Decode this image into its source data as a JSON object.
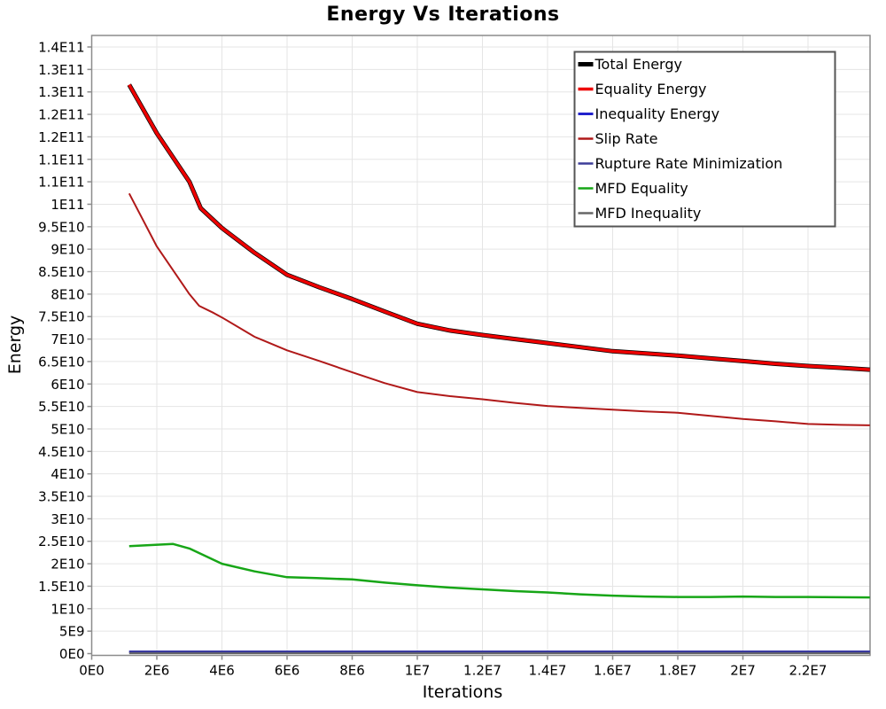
{
  "chart_data": {
    "type": "line",
    "title": "Energy Vs Iterations",
    "xlabel": "Iterations",
    "ylabel": "Energy",
    "units": {
      "x_points": "millions of iterations",
      "y_points": "billions (1e9) of energy"
    },
    "xlim_millions": [
      0,
      23.9
    ],
    "ylim_billions": [
      0,
      135
    ],
    "grid": true,
    "legend_position": "top-right",
    "x_tick_values_millions": [
      0,
      2,
      4,
      6,
      8,
      10,
      12,
      14,
      16,
      18,
      20,
      22
    ],
    "x_tick_labels": [
      "0E0",
      "2E6",
      "4E6",
      "6E6",
      "8E6",
      "1E7",
      "1.2E7",
      "1.4E7",
      "1.6E7",
      "1.8E7",
      "2E7",
      "2.2E7"
    ],
    "y_tick_values_billions": [
      0,
      5,
      10,
      15,
      20,
      25,
      30,
      35,
      40,
      45,
      50,
      55,
      60,
      65,
      70,
      75,
      80,
      85,
      90,
      95,
      100,
      105,
      110,
      115,
      120,
      125,
      130,
      135
    ],
    "y_tick_labels": [
      "0E0",
      "5E9",
      "1E10",
      "1.5E10",
      "2E10",
      "2.5E10",
      "3E10",
      "3.5E10",
      "4E10",
      "4.5E10",
      "5E10",
      "5.5E10",
      "6E10",
      "6.5E10",
      "7E10",
      "7.5E10",
      "8E10",
      "8.5E10",
      "9E10",
      "9.5E10",
      "1E11",
      "1.1E11",
      "1.1E11",
      "1.2E11",
      "1.2E11",
      "1.3E11",
      "1.3E11",
      "1.4E11"
    ],
    "series": [
      {
        "name": "Total Energy",
        "color": "#000000",
        "width": 5,
        "points": [
          [
            1.15,
            126.6
          ],
          [
            2,
            115.8
          ],
          [
            3,
            105.0
          ],
          [
            3.35,
            99.1
          ],
          [
            4,
            94.7
          ],
          [
            5,
            89.2
          ],
          [
            6,
            84.3
          ],
          [
            7,
            81.5
          ],
          [
            8,
            78.9
          ],
          [
            9,
            76.1
          ],
          [
            10,
            73.4
          ],
          [
            11,
            71.9
          ],
          [
            12,
            70.9
          ],
          [
            13,
            70.0
          ],
          [
            14,
            69.1
          ],
          [
            15,
            68.2
          ],
          [
            16,
            67.3
          ],
          [
            17,
            66.8
          ],
          [
            18,
            66.3
          ],
          [
            19,
            65.7
          ],
          [
            20,
            65.1
          ],
          [
            21,
            64.5
          ],
          [
            22,
            64.0
          ],
          [
            23,
            63.6
          ],
          [
            23.9,
            63.2
          ]
        ]
      },
      {
        "name": "Equality Energy",
        "color": "#ee0000",
        "width": 3.5,
        "points": [
          [
            1.15,
            126.6
          ],
          [
            2,
            115.8
          ],
          [
            3,
            105.0
          ],
          [
            3.35,
            99.1
          ],
          [
            4,
            94.7
          ],
          [
            5,
            89.2
          ],
          [
            6,
            84.3
          ],
          [
            7,
            81.5
          ],
          [
            8,
            78.9
          ],
          [
            9,
            76.1
          ],
          [
            10,
            73.4
          ],
          [
            11,
            71.9
          ],
          [
            12,
            70.9
          ],
          [
            13,
            70.0
          ],
          [
            14,
            69.1
          ],
          [
            15,
            68.2
          ],
          [
            16,
            67.3
          ],
          [
            17,
            66.8
          ],
          [
            18,
            66.3
          ],
          [
            19,
            65.7
          ],
          [
            20,
            65.1
          ],
          [
            21,
            64.5
          ],
          [
            22,
            64.0
          ],
          [
            23,
            63.6
          ],
          [
            23.9,
            63.2
          ]
        ]
      },
      {
        "name": "Inequality Energy",
        "color": "#2222cc",
        "width": 3,
        "points": [
          [
            1.15,
            0.4
          ],
          [
            5,
            0.4
          ],
          [
            10,
            0.4
          ],
          [
            15,
            0.4
          ],
          [
            20,
            0.4
          ],
          [
            23.9,
            0.4
          ]
        ]
      },
      {
        "name": "Slip Rate",
        "color": "#b01919",
        "width": 2,
        "points": [
          [
            1.15,
            102.4
          ],
          [
            2,
            90.6
          ],
          [
            3,
            80.0
          ],
          [
            3.3,
            77.4
          ],
          [
            3.75,
            75.8
          ],
          [
            4,
            74.8
          ],
          [
            5,
            70.5
          ],
          [
            6,
            67.5
          ],
          [
            7,
            65.1
          ],
          [
            8,
            62.6
          ],
          [
            9,
            60.2
          ],
          [
            10,
            58.2
          ],
          [
            11,
            57.3
          ],
          [
            12,
            56.6
          ],
          [
            13,
            55.8
          ],
          [
            14,
            55.1
          ],
          [
            15,
            54.7
          ],
          [
            16,
            54.3
          ],
          [
            17,
            53.9
          ],
          [
            18,
            53.6
          ],
          [
            19,
            52.9
          ],
          [
            20,
            52.2
          ],
          [
            21,
            51.7
          ],
          [
            22,
            51.1
          ],
          [
            23,
            50.9
          ],
          [
            23.9,
            50.8
          ]
        ]
      },
      {
        "name": "Rupture Rate Minimization",
        "color": "#3d3d99",
        "width": 2,
        "points": [
          [
            1.15,
            0.45
          ],
          [
            5,
            0.45
          ],
          [
            10,
            0.45
          ],
          [
            15,
            0.45
          ],
          [
            20,
            0.45
          ],
          [
            23.9,
            0.45
          ]
        ]
      },
      {
        "name": "MFD Equality",
        "color": "#17a617",
        "width": 2.5,
        "points": [
          [
            1.15,
            23.9
          ],
          [
            2.5,
            24.4
          ],
          [
            3,
            23.4
          ],
          [
            4,
            20.0
          ],
          [
            5,
            18.3
          ],
          [
            6,
            17.0
          ],
          [
            6.9,
            16.8
          ],
          [
            8,
            16.5
          ],
          [
            9,
            15.8
          ],
          [
            10,
            15.2
          ],
          [
            11,
            14.7
          ],
          [
            12,
            14.3
          ],
          [
            13,
            13.9
          ],
          [
            14,
            13.6
          ],
          [
            15,
            13.2
          ],
          [
            16,
            12.9
          ],
          [
            17,
            12.7
          ],
          [
            18,
            12.6
          ],
          [
            19,
            12.6
          ],
          [
            20,
            12.7
          ],
          [
            21,
            12.6
          ],
          [
            22,
            12.6
          ],
          [
            23.9,
            12.5
          ]
        ]
      },
      {
        "name": "MFD Inequality",
        "color": "#666666",
        "width": 2,
        "points": [
          [
            1.15,
            0.08
          ],
          [
            5,
            0.08
          ],
          [
            10,
            0.08
          ],
          [
            15,
            0.08
          ],
          [
            20,
            0.08
          ],
          [
            23.9,
            0.08
          ]
        ]
      }
    ]
  },
  "colors": {
    "background": "#ffffff",
    "plot_border": "#8c8c8c",
    "grid": "#e5e5e5",
    "tick": "#8c8c8c",
    "legend_border": "#555555",
    "text": "#000000"
  }
}
